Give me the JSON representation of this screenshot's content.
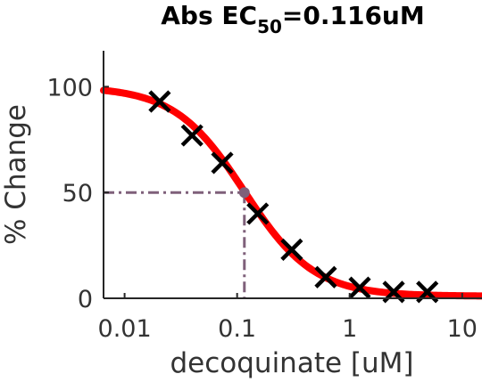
{
  "chart_data": {
    "type": "scatter",
    "title": {
      "prefix": "Abs EC",
      "subscript": "50",
      "suffix": "=0.116uM"
    },
    "xlabel": "decoquinate [uM]",
    "ylabel": "% Change",
    "x_scale": "log",
    "xlim": [
      0.0065,
      15
    ],
    "ylim": [
      0,
      117
    ],
    "x_ticks": [
      {
        "value": 0.01,
        "label": "0.01"
      },
      {
        "value": 0.1,
        "label": "0.1"
      },
      {
        "value": 1,
        "label": "1"
      },
      {
        "value": 10,
        "label": "10"
      }
    ],
    "y_ticks": [
      {
        "value": 0,
        "label": "0"
      },
      {
        "value": 50,
        "label": "50"
      },
      {
        "value": 100,
        "label": "100"
      }
    ],
    "grid": false,
    "series": [
      {
        "marker": "x",
        "color": "#000000",
        "points": [
          {
            "x": 0.0205,
            "y": 93
          },
          {
            "x": 0.0398,
            "y": 77
          },
          {
            "x": 0.0738,
            "y": 64
          },
          {
            "x": 0.1525,
            "y": 40
          },
          {
            "x": 0.3059,
            "y": 23
          },
          {
            "x": 0.6131,
            "y": 10
          },
          {
            "x": 1.2283,
            "y": 5
          },
          {
            "x": 2.4613,
            "y": 3
          },
          {
            "x": 4.8967,
            "y": 3
          }
        ]
      }
    ],
    "fit_curve": {
      "color": "#ff0000",
      "ec50": 0.116,
      "top": 100,
      "bottom": 1,
      "hill": 1.4
    },
    "ec50_marker": {
      "x": 0.116,
      "y": 50,
      "color": "#7f607a"
    }
  }
}
